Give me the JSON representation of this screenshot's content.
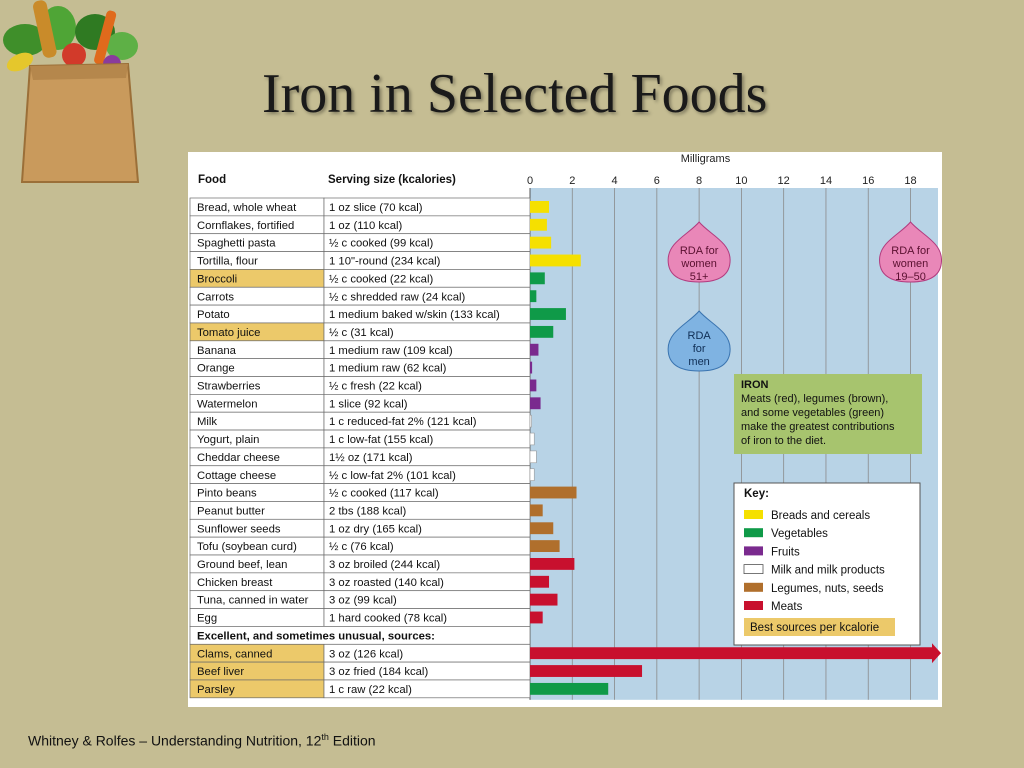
{
  "slide": {
    "title": "Iron in Selected Foods",
    "footer_prefix": "Whitney  & Rolfes – Understanding Nutrition, 12",
    "footer_sup": "th",
    "footer_suffix": "  Edition"
  },
  "table": {
    "col_food": "Food",
    "col_serving": "Serving size (kcalories)",
    "section_label": "Excellent, and sometimes unusual, sources:"
  },
  "colors": {
    "breads": "#f5e000",
    "vegetables": "#0f9a48",
    "fruits": "#7a2a8e",
    "milk": "#ffffff",
    "legumes": "#b06f2c",
    "meats": "#c8102e",
    "highlight": "#ecc96a",
    "plot_bg": "#b8d3e6"
  },
  "chart_data": {
    "type": "bar",
    "orientation": "horizontal",
    "xlabel": "Milligrams",
    "xlim": [
      0,
      19.3
    ],
    "xticks": [
      0,
      2,
      4,
      6,
      8,
      10,
      12,
      14,
      16,
      18
    ],
    "rows": [
      {
        "food": "Bread, whole wheat",
        "serving": "1 oz slice (70 kcal)",
        "value": 0.9,
        "group": "breads",
        "best": false
      },
      {
        "food": "Cornflakes, fortified",
        "serving": "1 oz (110 kcal)",
        "value": 0.8,
        "group": "breads",
        "best": false
      },
      {
        "food": "Spaghetti pasta",
        "serving": "½ c cooked (99 kcal)",
        "value": 1.0,
        "group": "breads",
        "best": false
      },
      {
        "food": "Tortilla, flour",
        "serving": "1 10\"-round (234 kcal)",
        "value": 2.4,
        "group": "breads",
        "best": false
      },
      {
        "food": "Broccoli",
        "serving": "½ c cooked (22 kcal)",
        "value": 0.7,
        "group": "vegetables",
        "best": true
      },
      {
        "food": "Carrots",
        "serving": "½ c shredded raw (24 kcal)",
        "value": 0.3,
        "group": "vegetables",
        "best": false
      },
      {
        "food": "Potato",
        "serving": "1 medium baked w/skin (133 kcal)",
        "value": 1.7,
        "group": "vegetables",
        "best": false
      },
      {
        "food": "Tomato juice",
        "serving": "½ c (31 kcal)",
        "value": 1.1,
        "group": "vegetables",
        "best": true
      },
      {
        "food": "Banana",
        "serving": "1 medium raw (109 kcal)",
        "value": 0.4,
        "group": "fruits",
        "best": false
      },
      {
        "food": "Orange",
        "serving": "1 medium raw (62 kcal)",
        "value": 0.1,
        "group": "fruits",
        "best": false
      },
      {
        "food": "Strawberries",
        "serving": "½ c fresh (22 kcal)",
        "value": 0.3,
        "group": "fruits",
        "best": false
      },
      {
        "food": "Watermelon",
        "serving": "1 slice (92 kcal)",
        "value": 0.5,
        "group": "fruits",
        "best": false
      },
      {
        "food": "Milk",
        "serving": "1 c reduced-fat 2% (121 kcal)",
        "value": 0.05,
        "group": "milk",
        "best": false
      },
      {
        "food": "Yogurt, plain",
        "serving": "1 c low-fat (155 kcal)",
        "value": 0.2,
        "group": "milk",
        "best": false
      },
      {
        "food": "Cheddar cheese",
        "serving": "1½ oz (171 kcal)",
        "value": 0.3,
        "group": "milk",
        "best": false
      },
      {
        "food": "Cottage cheese",
        "serving": "½ c low-fat 2% (101 kcal)",
        "value": 0.2,
        "group": "milk",
        "best": false
      },
      {
        "food": "Pinto beans",
        "serving": "½ c cooked (117 kcal)",
        "value": 2.2,
        "group": "legumes",
        "best": false
      },
      {
        "food": "Peanut butter",
        "serving": "2 tbs (188 kcal)",
        "value": 0.6,
        "group": "legumes",
        "best": false
      },
      {
        "food": "Sunflower seeds",
        "serving": "1 oz dry (165 kcal)",
        "value": 1.1,
        "group": "legumes",
        "best": false
      },
      {
        "food": "Tofu (soybean curd)",
        "serving": "½ c (76 kcal)",
        "value": 1.4,
        "group": "legumes",
        "best": false
      },
      {
        "food": "Ground beef, lean",
        "serving": "3 oz broiled (244 kcal)",
        "value": 2.1,
        "group": "meats",
        "best": false
      },
      {
        "food": "Chicken breast",
        "serving": "3 oz roasted (140 kcal)",
        "value": 0.9,
        "group": "meats",
        "best": false
      },
      {
        "food": "Tuna, canned in water",
        "serving": "3 oz (99 kcal)",
        "value": 1.3,
        "group": "meats",
        "best": false
      },
      {
        "food": "Egg",
        "serving": "1 hard cooked (78 kcal)",
        "value": 0.6,
        "group": "meats",
        "best": false
      },
      {
        "food": "Clams, canned",
        "serving": "3 oz (126 kcal)",
        "value": 23.8,
        "group": "meats",
        "best": true,
        "off_scale": true
      },
      {
        "food": "Beef liver",
        "serving": "3 oz fried (184 kcal)",
        "value": 5.3,
        "group": "meats",
        "best": true
      },
      {
        "food": "Parsley",
        "serving": "1 c raw (22 kcal)",
        "value": 3.7,
        "group": "vegetables",
        "best": true
      }
    ],
    "rda_markers": [
      {
        "value": 8,
        "lines": [
          "RDA for",
          "women",
          "51+"
        ],
        "style": "pink"
      },
      {
        "value": 18,
        "lines": [
          "RDA for",
          "women",
          "19–50"
        ],
        "style": "pink"
      },
      {
        "value": 8,
        "lines": [
          "RDA",
          "for",
          "men"
        ],
        "style": "blue"
      }
    ],
    "annotation": {
      "title": "IRON",
      "lines": [
        "Meats (red), legumes (brown),",
        "and some vegetables (green)",
        "make the greatest contributions",
        "of iron to the diet."
      ]
    },
    "legend": {
      "title": "Key:",
      "items": [
        {
          "group": "breads",
          "label": "Breads and cereals"
        },
        {
          "group": "vegetables",
          "label": "Vegetables"
        },
        {
          "group": "fruits",
          "label": "Fruits"
        },
        {
          "group": "milk",
          "label": "Milk and milk products"
        },
        {
          "group": "legumes",
          "label": "Legumes, nuts, seeds"
        },
        {
          "group": "meats",
          "label": "Meats"
        }
      ],
      "best_label": "Best sources per kcalorie"
    }
  }
}
